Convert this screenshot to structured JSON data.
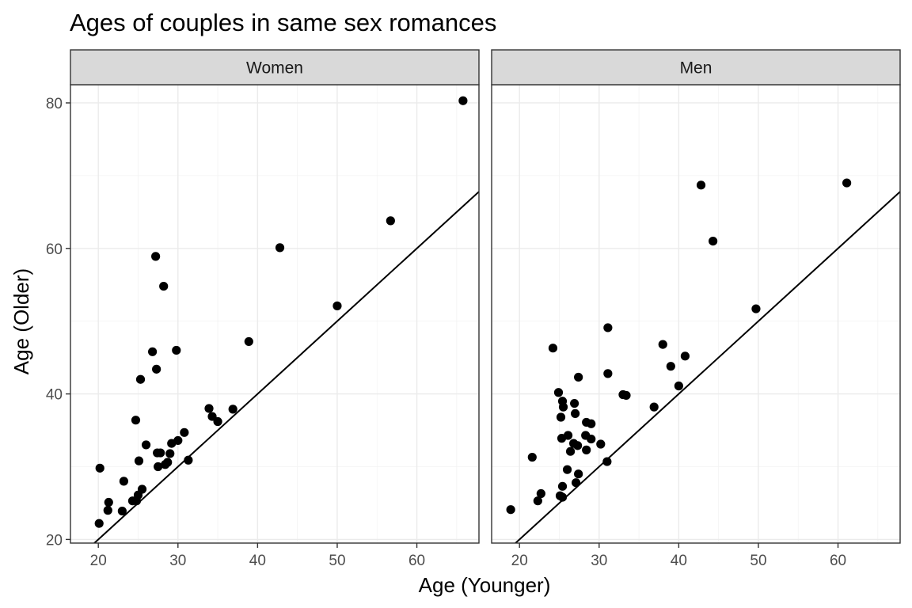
{
  "chart_data": {
    "type": "scatter",
    "title": "Ages of couples in same sex romances",
    "xlabel": "Age (Younger)",
    "ylabel": "Age (Older)",
    "xlim": [
      16.5,
      67.8
    ],
    "ylim": [
      19.5,
      82.5
    ],
    "x_ticks": [
      20,
      30,
      40,
      50,
      60
    ],
    "y_ticks": [
      20,
      40,
      60,
      80
    ],
    "grid": true,
    "reference_line": {
      "slope": 1,
      "intercept": 0
    },
    "panels": [
      {
        "name": "Women",
        "points": [
          [
            20.2,
            29.8
          ],
          [
            20.1,
            22.2
          ],
          [
            21.2,
            24.0
          ],
          [
            21.3,
            25.1
          ],
          [
            23.0,
            23.9
          ],
          [
            23.2,
            28.0
          ],
          [
            24.3,
            25.3
          ],
          [
            24.7,
            36.4
          ],
          [
            24.8,
            25.3
          ],
          [
            25.0,
            26.1
          ],
          [
            25.1,
            30.8
          ],
          [
            25.3,
            42.0
          ],
          [
            25.5,
            26.9
          ],
          [
            26.0,
            33.0
          ],
          [
            26.8,
            45.8
          ],
          [
            27.2,
            58.9
          ],
          [
            27.3,
            43.4
          ],
          [
            27.4,
            31.9
          ],
          [
            27.5,
            30.0
          ],
          [
            27.8,
            31.9
          ],
          [
            28.2,
            54.8
          ],
          [
            28.4,
            30.3
          ],
          [
            28.7,
            30.6
          ],
          [
            29.0,
            31.8
          ],
          [
            29.2,
            33.2
          ],
          [
            29.8,
            46.0
          ],
          [
            30.0,
            33.6
          ],
          [
            30.8,
            34.7
          ],
          [
            31.3,
            30.9
          ],
          [
            33.9,
            38.0
          ],
          [
            34.3,
            36.9
          ],
          [
            35.0,
            36.2
          ],
          [
            36.9,
            37.9
          ],
          [
            38.9,
            47.2
          ],
          [
            42.8,
            60.1
          ],
          [
            50.0,
            52.1
          ],
          [
            56.7,
            63.8
          ],
          [
            65.8,
            80.3
          ]
        ]
      },
      {
        "name": "Men",
        "points": [
          [
            18.9,
            24.1
          ],
          [
            21.6,
            31.3
          ],
          [
            22.3,
            25.3
          ],
          [
            22.7,
            26.3
          ],
          [
            24.2,
            46.3
          ],
          [
            24.9,
            40.2
          ],
          [
            25.1,
            26.0
          ],
          [
            25.2,
            36.8
          ],
          [
            25.3,
            33.9
          ],
          [
            25.4,
            39.0
          ],
          [
            25.4,
            25.8
          ],
          [
            25.4,
            27.3
          ],
          [
            25.5,
            38.2
          ],
          [
            26.0,
            29.6
          ],
          [
            26.1,
            34.3
          ],
          [
            26.4,
            32.1
          ],
          [
            26.8,
            33.2
          ],
          [
            26.9,
            38.7
          ],
          [
            27.0,
            37.3
          ],
          [
            27.1,
            27.8
          ],
          [
            27.3,
            32.9
          ],
          [
            27.4,
            42.3
          ],
          [
            27.4,
            29.0
          ],
          [
            28.3,
            34.3
          ],
          [
            28.4,
            36.1
          ],
          [
            28.4,
            32.3
          ],
          [
            29.0,
            35.9
          ],
          [
            29.0,
            33.8
          ],
          [
            30.2,
            33.1
          ],
          [
            31.0,
            30.7
          ],
          [
            31.1,
            49.1
          ],
          [
            31.1,
            42.8
          ],
          [
            33.0,
            39.9
          ],
          [
            33.4,
            39.8
          ],
          [
            36.9,
            38.2
          ],
          [
            38.0,
            46.8
          ],
          [
            39.0,
            43.8
          ],
          [
            40.0,
            41.1
          ],
          [
            40.8,
            45.2
          ],
          [
            42.8,
            68.7
          ],
          [
            44.3,
            61.0
          ],
          [
            49.7,
            51.7
          ],
          [
            61.1,
            69.0
          ]
        ]
      }
    ]
  }
}
